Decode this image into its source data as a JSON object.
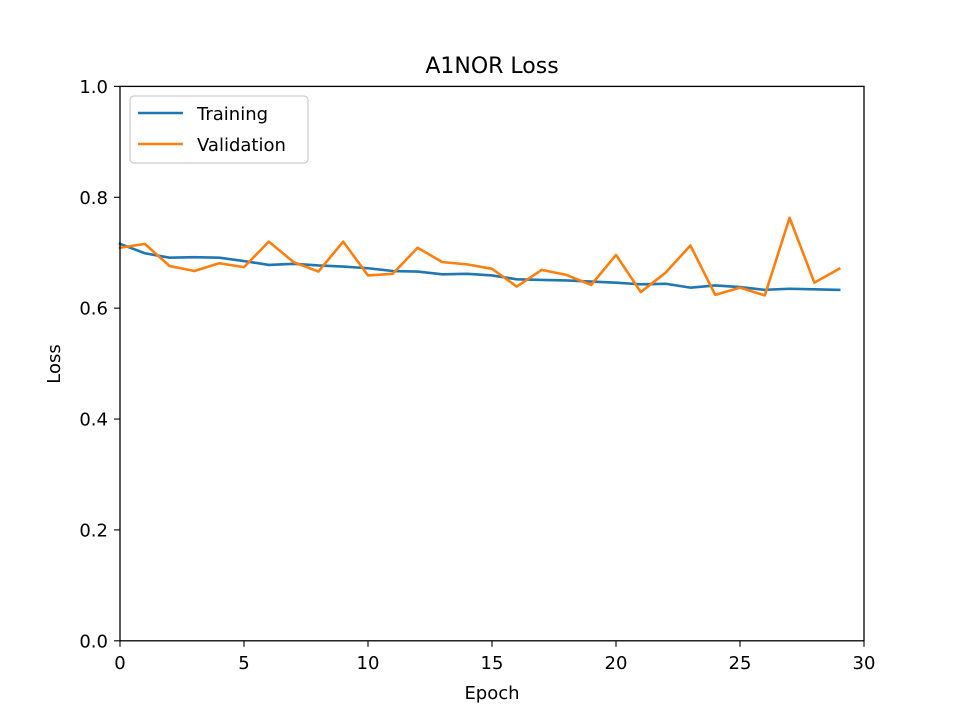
{
  "chart_data": {
    "type": "line",
    "title": "A1NOR Loss",
    "xlabel": "Epoch",
    "ylabel": "Loss",
    "xlim": [
      0,
      30
    ],
    "ylim": [
      0.0,
      1.0
    ],
    "x_ticks": [
      0,
      5,
      10,
      15,
      20,
      25,
      30
    ],
    "y_ticks": [
      0.0,
      0.2,
      0.4,
      0.6,
      0.8,
      1.0
    ],
    "x_tick_labels": [
      "0",
      "5",
      "10",
      "15",
      "20",
      "25",
      "30"
    ],
    "y_tick_labels": [
      "0.0",
      "0.2",
      "0.4",
      "0.6",
      "0.8",
      "1.0"
    ],
    "grid": false,
    "legend_position": "top-left",
    "x": [
      0,
      1,
      2,
      3,
      4,
      5,
      6,
      7,
      8,
      9,
      10,
      11,
      12,
      13,
      14,
      15,
      16,
      17,
      18,
      19,
      20,
      21,
      22,
      23,
      24,
      25,
      26,
      27,
      28,
      29
    ],
    "series": [
      {
        "name": "Training",
        "color": "#1f77b4",
        "values": [
          0.716,
          0.699,
          0.691,
          0.692,
          0.691,
          0.685,
          0.678,
          0.68,
          0.677,
          0.675,
          0.672,
          0.667,
          0.666,
          0.661,
          0.662,
          0.659,
          0.652,
          0.651,
          0.65,
          0.648,
          0.646,
          0.643,
          0.644,
          0.637,
          0.641,
          0.638,
          0.633,
          0.635,
          0.634,
          0.633
        ]
      },
      {
        "name": "Validation",
        "color": "#ff7f0e",
        "values": [
          0.709,
          0.716,
          0.676,
          0.667,
          0.681,
          0.674,
          0.72,
          0.683,
          0.666,
          0.72,
          0.659,
          0.662,
          0.709,
          0.683,
          0.679,
          0.671,
          0.639,
          0.669,
          0.66,
          0.642,
          0.696,
          0.629,
          0.664,
          0.713,
          0.624,
          0.637,
          0.623,
          0.763,
          0.646,
          0.671
        ]
      }
    ]
  }
}
